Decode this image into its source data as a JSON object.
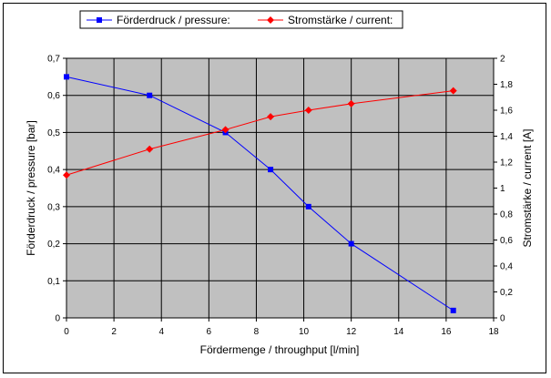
{
  "chart_data": {
    "type": "line",
    "title": "",
    "xlabel": "Fördermenge / throughput [l/min]",
    "ylabel_left": "Förderdruck / pressure [bar]",
    "ylabel_right": "Stromstärke / current [A]",
    "xlim": [
      0,
      18
    ],
    "ylim_left": [
      0,
      0.7
    ],
    "ylim_right": [
      0,
      2
    ],
    "x_ticks": [
      "0",
      "2",
      "4",
      "6",
      "8",
      "10",
      "12",
      "14",
      "16",
      "18"
    ],
    "y_left_ticks": [
      "0",
      "0,1",
      "0,2",
      "0,3",
      "0,4",
      "0,5",
      "0,6",
      "0,7"
    ],
    "y_right_ticks": [
      "0",
      "0,2",
      "0,4",
      "0,6",
      "0,8",
      "1",
      "1,2",
      "1,4",
      "1,6",
      "1,8",
      "2"
    ],
    "grid": true,
    "legend_position": "top",
    "plot_background": "#c0c0c0",
    "series": [
      {
        "name": "Förderdruck / pressure:",
        "axis": "left",
        "color": "#0000ff",
        "marker": "square",
        "x": [
          0,
          3.5,
          6.7,
          8.6,
          10.2,
          12,
          16.3
        ],
        "y": [
          0.65,
          0.6,
          0.5,
          0.4,
          0.3,
          0.2,
          0.02
        ]
      },
      {
        "name": "Stromstärke / current:",
        "axis": "right",
        "color": "#ff0000",
        "marker": "diamond",
        "x": [
          0,
          3.5,
          6.7,
          8.6,
          10.2,
          12,
          16.3
        ],
        "y": [
          1.1,
          1.3,
          1.45,
          1.55,
          1.6,
          1.65,
          1.75
        ]
      }
    ]
  }
}
